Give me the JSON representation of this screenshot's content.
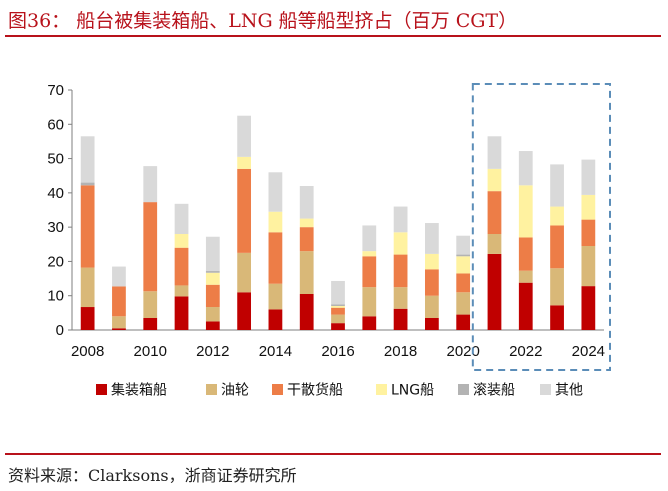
{
  "header": {
    "title": "图36：  船台被集装箱船、LNG 船等船型挤占（百万 CGT）"
  },
  "footer": {
    "source": "资料来源：Clarksons，浙商证券研究所"
  },
  "chart_data": {
    "type": "bar",
    "stacked": true,
    "x": [
      2008,
      2009,
      2010,
      2011,
      2012,
      2013,
      2014,
      2015,
      2016,
      2017,
      2018,
      2019,
      2020,
      2021,
      2022,
      2023,
      2024
    ],
    "x_ticks": [
      "2008",
      "2010",
      "2012",
      "2014",
      "2016",
      "2018",
      "2020",
      "2022",
      "2024"
    ],
    "ylim": [
      0,
      70
    ],
    "y_ticks": [
      "0",
      "10",
      "20",
      "30",
      "40",
      "50",
      "60",
      "70"
    ],
    "highlight_range": [
      2021,
      2024
    ],
    "legend_position": "bottom",
    "series": [
      {
        "name": "集装箱船",
        "color": "#c00000",
        "values": [
          6.7,
          0.5,
          3.5,
          9.8,
          2.5,
          11.0,
          6.0,
          10.5,
          2.0,
          4.0,
          6.2,
          3.5,
          4.5,
          22.2,
          13.8,
          7.2,
          12.8
        ]
      },
      {
        "name": "油轮",
        "color": "#d9b878",
        "values": [
          11.5,
          3.5,
          7.8,
          3.2,
          4.2,
          11.5,
          7.5,
          12.5,
          2.5,
          8.5,
          6.3,
          6.5,
          6.5,
          5.8,
          3.5,
          10.8,
          11.7
        ]
      },
      {
        "name": "干散货船",
        "color": "#ed7d47",
        "values": [
          24.0,
          8.7,
          26.0,
          11.0,
          6.5,
          24.5,
          15.0,
          7.0,
          2.0,
          9.0,
          9.5,
          7.7,
          5.5,
          12.5,
          9.7,
          12.5,
          7.7
        ]
      },
      {
        "name": "LNG船",
        "color": "#fff2a0",
        "values": [
          0.0,
          0.0,
          0.0,
          4.0,
          3.5,
          3.5,
          6.0,
          2.5,
          0.5,
          1.5,
          6.5,
          4.5,
          5.0,
          6.5,
          15.2,
          5.5,
          7.2
        ]
      },
      {
        "name": "滚装船",
        "color": "#b3b3b3",
        "values": [
          0.8,
          0.0,
          0.0,
          0.0,
          0.5,
          0.0,
          0.0,
          0.0,
          0.5,
          0.0,
          0.0,
          0.0,
          0.5,
          0.0,
          0.0,
          0.0,
          0.0
        ]
      },
      {
        "name": "其他",
        "color": "#d9d9d9",
        "values": [
          13.5,
          5.8,
          10.5,
          8.8,
          10.0,
          12.0,
          11.5,
          9.5,
          6.8,
          7.5,
          7.5,
          9.0,
          5.5,
          9.5,
          10.0,
          12.3,
          10.3
        ]
      }
    ]
  }
}
